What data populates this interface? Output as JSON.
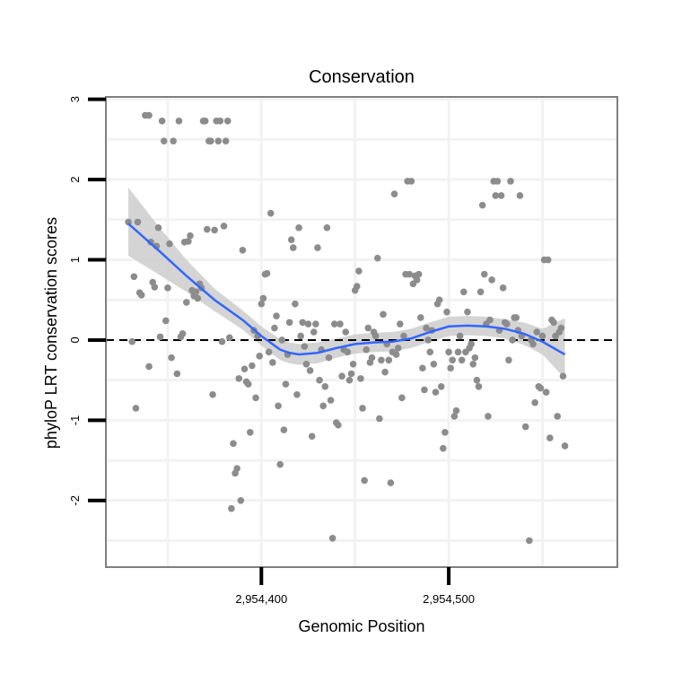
{
  "chart_data": {
    "type": "scatter",
    "title": "Conservation",
    "xlabel": "Genomic Position",
    "ylabel": "phyloP LRT conservation scores",
    "xlim": [
      2954317,
      2954590
    ],
    "ylim": [
      -2.83,
      3.03
    ],
    "x_ticks": [
      2954400,
      2954500
    ],
    "x_tick_labels": [
      "2,954,400",
      "2,954,500"
    ],
    "y_ticks": [
      -2,
      -1,
      0,
      1,
      2,
      3
    ],
    "y_tick_labels": [
      "-2",
      "-1",
      "0",
      "1",
      "2",
      "3"
    ],
    "grid": true,
    "reference_line": {
      "y": 0,
      "style": "dashed"
    },
    "colors": {
      "points": "#8c8c8c",
      "smooth_line": "#3366ff",
      "confidence_band": "#cccccc",
      "frame": "#7f7f7f",
      "grid": "#f2f2f2"
    },
    "points": [
      [
        2954329,
        1.47
      ],
      [
        2954331,
        -0.02
      ],
      [
        2954332,
        0.79
      ],
      [
        2954333,
        -0.85
      ],
      [
        2954334,
        1.47
      ],
      [
        2954335,
        0.59
      ],
      [
        2954336,
        0.56
      ],
      [
        2954338,
        2.8
      ],
      [
        2954340,
        2.8
      ],
      [
        2954340,
        -0.33
      ],
      [
        2954341,
        1.22
      ],
      [
        2954342,
        0.72
      ],
      [
        2954343,
        0.66
      ],
      [
        2954344,
        1.17
      ],
      [
        2954345,
        1.4
      ],
      [
        2954346,
        0.04
      ],
      [
        2954347,
        2.73
      ],
      [
        2954348,
        2.48
      ],
      [
        2954349,
        0.24
      ],
      [
        2954350,
        0.65
      ],
      [
        2954351,
        1.2
      ],
      [
        2954352,
        -0.22
      ],
      [
        2954353,
        2.48
      ],
      [
        2954355,
        -0.42
      ],
      [
        2954356,
        2.73
      ],
      [
        2954357,
        0.04
      ],
      [
        2954358,
        0.08
      ],
      [
        2954359,
        1.22
      ],
      [
        2954360,
        0.47
      ],
      [
        2954361,
        1.23
      ],
      [
        2954362,
        1.3
      ],
      [
        2954363,
        0.62
      ],
      [
        2954364,
        0.55
      ],
      [
        2954365,
        0.6
      ],
      [
        2954366,
        0.52
      ],
      [
        2954367,
        0.7
      ],
      [
        2954368,
        0.65
      ],
      [
        2954369,
        2.73
      ],
      [
        2954370,
        2.73
      ],
      [
        2954371,
        1.38
      ],
      [
        2954372,
        2.48
      ],
      [
        2954373,
        2.48
      ],
      [
        2954374,
        -0.68
      ],
      [
        2954375,
        1.37
      ],
      [
        2954376,
        2.73
      ],
      [
        2954377,
        2.48
      ],
      [
        2954378,
        2.73
      ],
      [
        2954379,
        -0.02
      ],
      [
        2954380,
        1.42
      ],
      [
        2954381,
        2.48
      ],
      [
        2954382,
        2.73
      ],
      [
        2954383,
        0.03
      ],
      [
        2954384,
        -2.1
      ],
      [
        2954385,
        -1.29
      ],
      [
        2954386,
        -1.66
      ],
      [
        2954387,
        -1.6
      ],
      [
        2954388,
        -0.48
      ],
      [
        2954389,
        -2.0
      ],
      [
        2954390,
        1.12
      ],
      [
        2954391,
        -0.36
      ],
      [
        2954392,
        -0.52
      ],
      [
        2954393,
        -0.55
      ],
      [
        2954394,
        -1.15
      ],
      [
        2954395,
        -0.32
      ],
      [
        2954396,
        0.12
      ],
      [
        2954397,
        -0.72
      ],
      [
        2954398,
        0.05
      ],
      [
        2954399,
        -0.2
      ],
      [
        2954400,
        0.45
      ],
      [
        2954401,
        0.52
      ],
      [
        2954402,
        0.82
      ],
      [
        2954403,
        0.83
      ],
      [
        2954404,
        -0.15
      ],
      [
        2954405,
        1.58
      ],
      [
        2954406,
        -0.28
      ],
      [
        2954407,
        0.15
      ],
      [
        2954408,
        0.3
      ],
      [
        2954409,
        -0.82
      ],
      [
        2954410,
        -1.55
      ],
      [
        2954411,
        0.0
      ],
      [
        2954412,
        -1.12
      ],
      [
        2954413,
        -0.55
      ],
      [
        2954414,
        -0.18
      ],
      [
        2954415,
        0.22
      ],
      [
        2954416,
        1.25
      ],
      [
        2954417,
        1.15
      ],
      [
        2954418,
        0.45
      ],
      [
        2954419,
        -0.68
      ],
      [
        2954420,
        1.4
      ],
      [
        2954421,
        0.05
      ],
      [
        2954422,
        0.22
      ],
      [
        2954423,
        -0.08
      ],
      [
        2954424,
        -0.3
      ],
      [
        2954425,
        0.2
      ],
      [
        2954426,
        -0.38
      ],
      [
        2954427,
        -1.2
      ],
      [
        2954428,
        0.1
      ],
      [
        2954429,
        0.2
      ],
      [
        2954430,
        1.15
      ],
      [
        2954431,
        -0.5
      ],
      [
        2954432,
        -0.12
      ],
      [
        2954433,
        -0.82
      ],
      [
        2954434,
        -0.58
      ],
      [
        2954435,
        1.4
      ],
      [
        2954436,
        -0.22
      ],
      [
        2954437,
        -0.75
      ],
      [
        2954438,
        -2.47
      ],
      [
        2954439,
        0.2
      ],
      [
        2954440,
        -1.03
      ],
      [
        2954441,
        -1.06
      ],
      [
        2954442,
        0.2
      ],
      [
        2954443,
        -0.45
      ],
      [
        2954444,
        -0.12
      ],
      [
        2954445,
        0.1
      ],
      [
        2954446,
        -0.15
      ],
      [
        2954447,
        -0.5
      ],
      [
        2954448,
        -0.42
      ],
      [
        2954449,
        -0.3
      ],
      [
        2954450,
        0.62
      ],
      [
        2954451,
        0.67
      ],
      [
        2954452,
        0.86
      ],
      [
        2954453,
        -0.48
      ],
      [
        2954454,
        -0.85
      ],
      [
        2954455,
        -1.75
      ],
      [
        2954456,
        -0.12
      ],
      [
        2954457,
        0.15
      ],
      [
        2954458,
        -0.28
      ],
      [
        2954459,
        -0.22
      ],
      [
        2954460,
        0.1
      ],
      [
        2954461,
        0.05
      ],
      [
        2954462,
        1.02
      ],
      [
        2954463,
        -0.98
      ],
      [
        2954464,
        -0.25
      ],
      [
        2954465,
        0.32
      ],
      [
        2954466,
        -0.4
      ],
      [
        2954467,
        -0.05
      ],
      [
        2954468,
        -0.25
      ],
      [
        2954469,
        -1.78
      ],
      [
        2954470,
        -0.15
      ],
      [
        2954471,
        1.82
      ],
      [
        2954472,
        -0.18
      ],
      [
        2954473,
        -0.1
      ],
      [
        2954474,
        0.2
      ],
      [
        2954475,
        -0.72
      ],
      [
        2954476,
        0.05
      ],
      [
        2954477,
        0.82
      ],
      [
        2954478,
        1.98
      ],
      [
        2954479,
        0.82
      ],
      [
        2954480,
        1.98
      ],
      [
        2954481,
        0.7
      ],
      [
        2954482,
        0.8
      ],
      [
        2954483,
        0.75
      ],
      [
        2954484,
        0.82
      ],
      [
        2954485,
        0.28
      ],
      [
        2954486,
        -0.35
      ],
      [
        2954487,
        -0.62
      ],
      [
        2954488,
        0.15
      ],
      [
        2954489,
        0.0
      ],
      [
        2954490,
        -0.15
      ],
      [
        2954491,
        0.12
      ],
      [
        2954492,
        -0.3
      ],
      [
        2954493,
        -0.65
      ],
      [
        2954494,
        0.45
      ],
      [
        2954495,
        0.5
      ],
      [
        2954496,
        -0.58
      ],
      [
        2954497,
        -1.35
      ],
      [
        2954498,
        -1.15
      ],
      [
        2954499,
        0.35
      ],
      [
        2954500,
        -0.15
      ],
      [
        2954501,
        -0.35
      ],
      [
        2954502,
        -0.25
      ],
      [
        2954503,
        -0.95
      ],
      [
        2954504,
        -0.88
      ],
      [
        2954505,
        -0.15
      ],
      [
        2954506,
        0.05
      ],
      [
        2954507,
        -0.25
      ],
      [
        2954508,
        0.6
      ],
      [
        2954509,
        -0.15
      ],
      [
        2954510,
        0.35
      ],
      [
        2954511,
        -0.1
      ],
      [
        2954512,
        -0.05
      ],
      [
        2954513,
        -0.3
      ],
      [
        2954514,
        -0.22
      ],
      [
        2954515,
        -0.5
      ],
      [
        2954516,
        -0.58
      ],
      [
        2954517,
        0.6
      ],
      [
        2954518,
        1.68
      ],
      [
        2954519,
        0.82
      ],
      [
        2954520,
        0.2
      ],
      [
        2954521,
        -0.95
      ],
      [
        2954522,
        0.25
      ],
      [
        2954523,
        0.75
      ],
      [
        2954524,
        1.98
      ],
      [
        2954525,
        1.8
      ],
      [
        2954526,
        1.98
      ],
      [
        2954527,
        0.12
      ],
      [
        2954528,
        1.8
      ],
      [
        2954529,
        0.65
      ],
      [
        2954530,
        0.22
      ],
      [
        2954531,
        0.2
      ],
      [
        2954532,
        -0.25
      ],
      [
        2954533,
        1.98
      ],
      [
        2954534,
        0.0
      ],
      [
        2954535,
        0.28
      ],
      [
        2954536,
        0.28
      ],
      [
        2954537,
        0.12
      ],
      [
        2954538,
        1.8
      ],
      [
        2954539,
        0.05
      ],
      [
        2954541,
        -1.08
      ],
      [
        2954543,
        -2.5
      ],
      [
        2954544,
        0.0
      ],
      [
        2954545,
        -0.05
      ],
      [
        2954546,
        -0.78
      ],
      [
        2954547,
        0.1
      ],
      [
        2954548,
        -0.58
      ],
      [
        2954549,
        -0.6
      ],
      [
        2954550,
        0.05
      ],
      [
        2954551,
        1.0
      ],
      [
        2954552,
        -0.65
      ],
      [
        2954553,
        1.0
      ],
      [
        2954554,
        -1.22
      ],
      [
        2954555,
        0.25
      ],
      [
        2954556,
        0.22
      ],
      [
        2954557,
        0.05
      ],
      [
        2954558,
        -0.95
      ],
      [
        2954559,
        0.1
      ],
      [
        2954560,
        0.15
      ],
      [
        2954561,
        -0.45
      ],
      [
        2954562,
        -1.32
      ]
    ],
    "smooth_line": {
      "x": [
        2954329,
        2954345,
        2954360,
        2954375,
        2954390,
        2954400,
        2954410,
        2954415,
        2954420,
        2954430,
        2954440,
        2954450,
        2954460,
        2954470,
        2954480,
        2954490,
        2954500,
        2954510,
        2954520,
        2954530,
        2954540,
        2954550,
        2954562
      ],
      "y": [
        1.45,
        1.12,
        0.8,
        0.5,
        0.25,
        0.05,
        -0.12,
        -0.16,
        -0.18,
        -0.16,
        -0.1,
        -0.05,
        -0.03,
        -0.02,
        0.02,
        0.1,
        0.17,
        0.18,
        0.17,
        0.14,
        0.08,
        -0.02,
        -0.18
      ],
      "lower": [
        1.05,
        0.82,
        0.6,
        0.36,
        0.13,
        -0.07,
        -0.25,
        -0.29,
        -0.31,
        -0.29,
        -0.22,
        -0.17,
        -0.15,
        -0.14,
        -0.1,
        -0.02,
        0.05,
        0.06,
        0.05,
        0.02,
        -0.06,
        -0.18,
        -0.48
      ],
      "upper": [
        1.9,
        1.42,
        1.0,
        0.64,
        0.37,
        0.17,
        0.01,
        -0.03,
        -0.05,
        -0.03,
        0.02,
        0.07,
        0.09,
        0.1,
        0.14,
        0.22,
        0.29,
        0.3,
        0.29,
        0.26,
        0.22,
        0.14,
        0.27
      ]
    }
  }
}
